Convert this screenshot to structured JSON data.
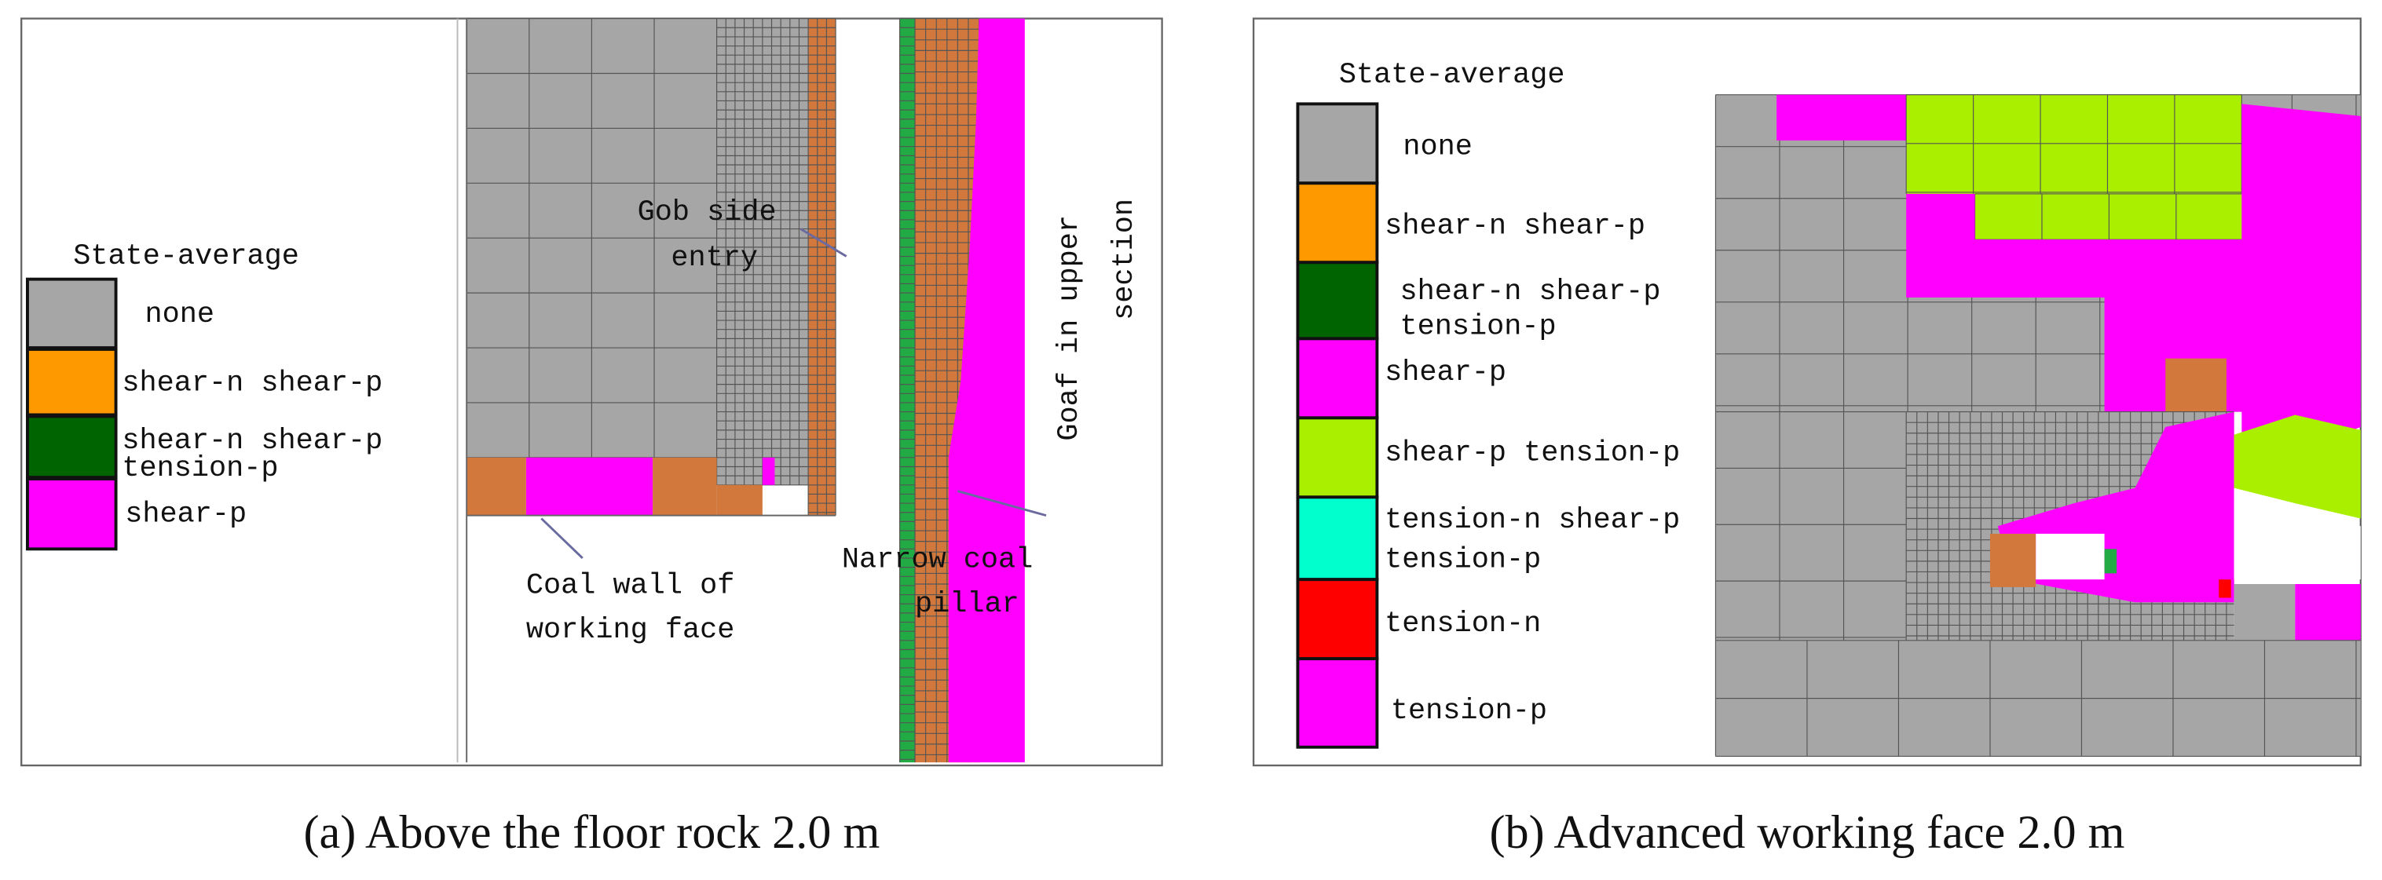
{
  "panels": [
    {
      "legend_title": "State-average",
      "legend": [
        {
          "label": [
            "none"
          ],
          "color": "#a6a6a6"
        },
        {
          "label": [
            "shear-n shear-p"
          ],
          "color": "#ff9900"
        },
        {
          "label": [
            "shear-n shear-p",
            "tension-p"
          ],
          "color": "#006400"
        },
        {
          "label": [
            "shear-p"
          ],
          "color": "#ff00ff"
        }
      ],
      "annotations": [
        {
          "lines": [
            "Gob side",
            "entry"
          ]
        },
        {
          "lines": [
            "Goaf in upper",
            "section"
          ]
        },
        {
          "lines": [
            "Coal wall of",
            "working face"
          ]
        },
        {
          "lines": [
            "Narrow coal",
            "pillar"
          ]
        }
      ],
      "caption": "(a) Above the floor rock 2.0 m"
    },
    {
      "legend_title": "State-average",
      "legend": [
        {
          "label": [
            "none"
          ],
          "color": "#a6a6a6"
        },
        {
          "label": [
            "shear-n shear-p"
          ],
          "color": "#ff9900"
        },
        {
          "label": [
            "shear-n shear-p",
            "tension-p"
          ],
          "color": "#006400"
        },
        {
          "label": [
            "shear-p"
          ],
          "color": "#ff00ff"
        },
        {
          "label": [
            "shear-p tension-p"
          ],
          "color": "#aaee00"
        },
        {
          "label": [
            "tension-n shear-p",
            "tension-p"
          ],
          "color": "#00ffcc"
        },
        {
          "label": [
            "tension-n"
          ],
          "color": "#ff0000"
        },
        {
          "label": [
            "tension-p"
          ],
          "color": "#ff00ff"
        }
      ],
      "caption": "(b) Advanced working face 2.0 m"
    }
  ]
}
